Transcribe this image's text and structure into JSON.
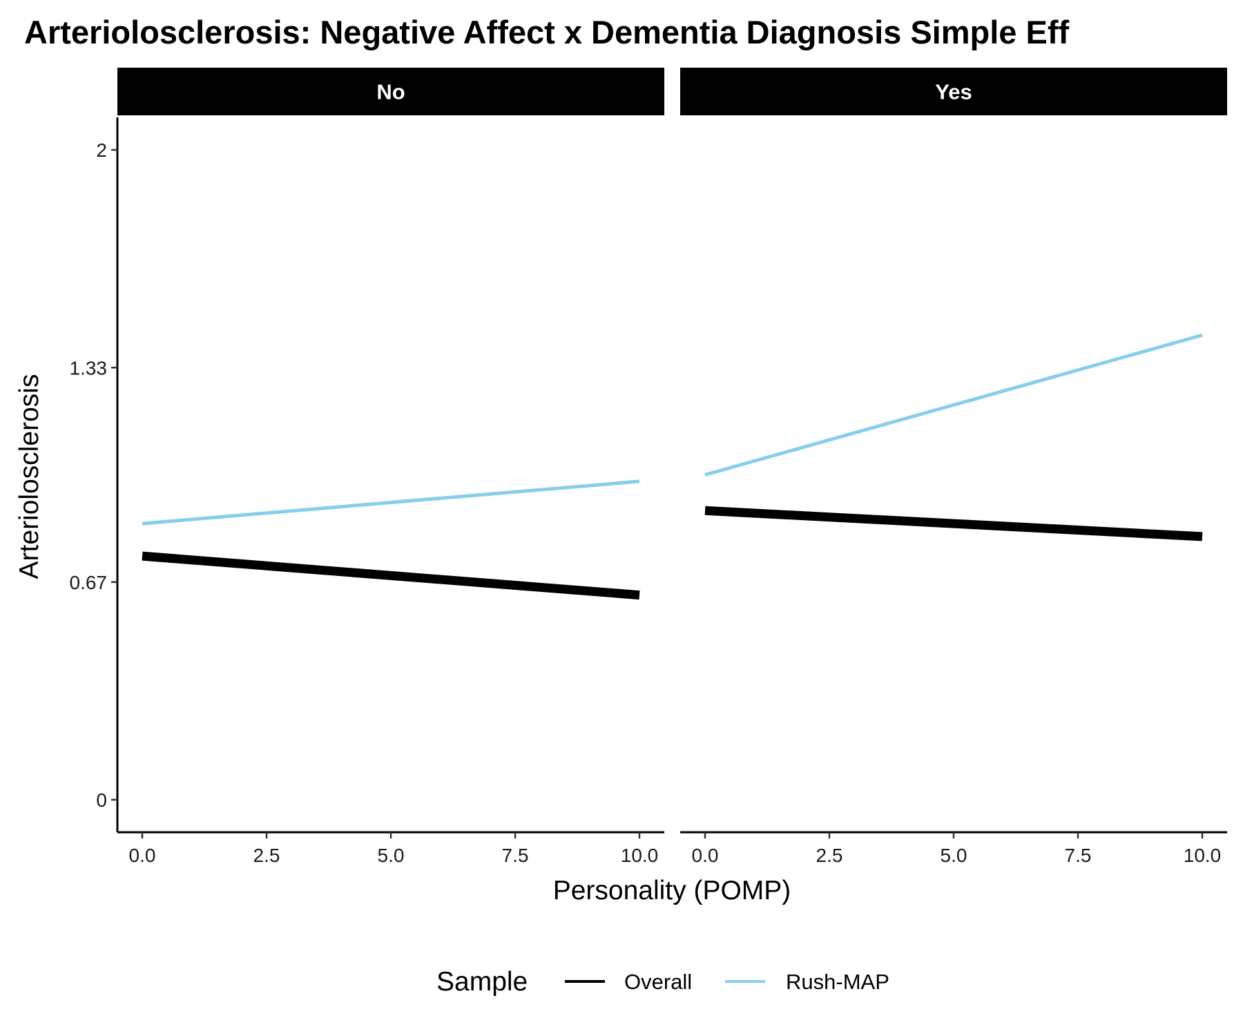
{
  "chart_data": {
    "type": "line",
    "title": "Arteriolosclerosis: Negative Affect x Dementia Diagnosis Simple Eff",
    "xlabel": "Personality (POMP)",
    "ylabel": "Arteriolosclerosis",
    "xlim": [
      -0.5,
      10.5
    ],
    "ylim": [
      -0.1,
      2.1
    ],
    "x_ticks": [
      0,
      2.5,
      5,
      7.5,
      10
    ],
    "x_tick_labels": [
      "0.0",
      "2.5",
      "5.0",
      "7.5",
      "10.0"
    ],
    "y_ticks": [
      0,
      0.67,
      1.33,
      2
    ],
    "y_tick_labels": [
      "0",
      "0.67",
      "1.33",
      "2"
    ],
    "grid": false,
    "legend": {
      "title": "Sample",
      "position": "bottom",
      "entries": [
        {
          "label": "Overall",
          "color": "#000000"
        },
        {
          "label": "Rush-MAP",
          "color": "#87ceeb"
        }
      ]
    },
    "panels": [
      {
        "label": "No",
        "series": [
          {
            "name": "Overall",
            "color": "#000000",
            "x": [
              0,
              10
            ],
            "y": [
              0.75,
              0.63
            ]
          },
          {
            "name": "Rush-MAP",
            "color": "#87ceeb",
            "x": [
              0,
              10
            ],
            "y": [
              0.85,
              0.98
            ]
          }
        ]
      },
      {
        "label": "Yes",
        "series": [
          {
            "name": "Overall",
            "color": "#000000",
            "x": [
              0,
              10
            ],
            "y": [
              0.89,
              0.81
            ]
          },
          {
            "name": "Rush-MAP",
            "color": "#87ceeb",
            "x": [
              0,
              10
            ],
            "y": [
              1.0,
              1.43
            ]
          }
        ]
      }
    ]
  }
}
